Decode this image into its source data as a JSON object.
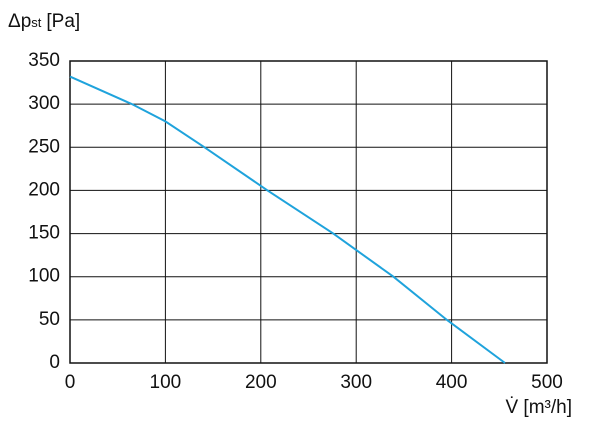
{
  "chart_data": {
    "type": "line",
    "ylabel": [
      "Δp",
      "st",
      "[Pa]"
    ],
    "xlabel": "V̇ [m³/h]",
    "x": [
      0,
      65,
      100,
      141,
      207,
      276,
      339,
      395,
      456
    ],
    "series": [
      {
        "name": null,
        "color": "#1fa3dc",
        "values": [
          332,
          300,
          280,
          250,
          200,
          150,
          100,
          50,
          0
        ]
      }
    ],
    "xlim": [
      0,
      500
    ],
    "xticks": [
      0,
      100,
      200,
      300,
      400,
      500
    ],
    "ylim": [
      0,
      350
    ],
    "yticks": [
      0,
      50,
      100,
      150,
      200,
      250,
      300,
      350
    ],
    "grid": true
  }
}
